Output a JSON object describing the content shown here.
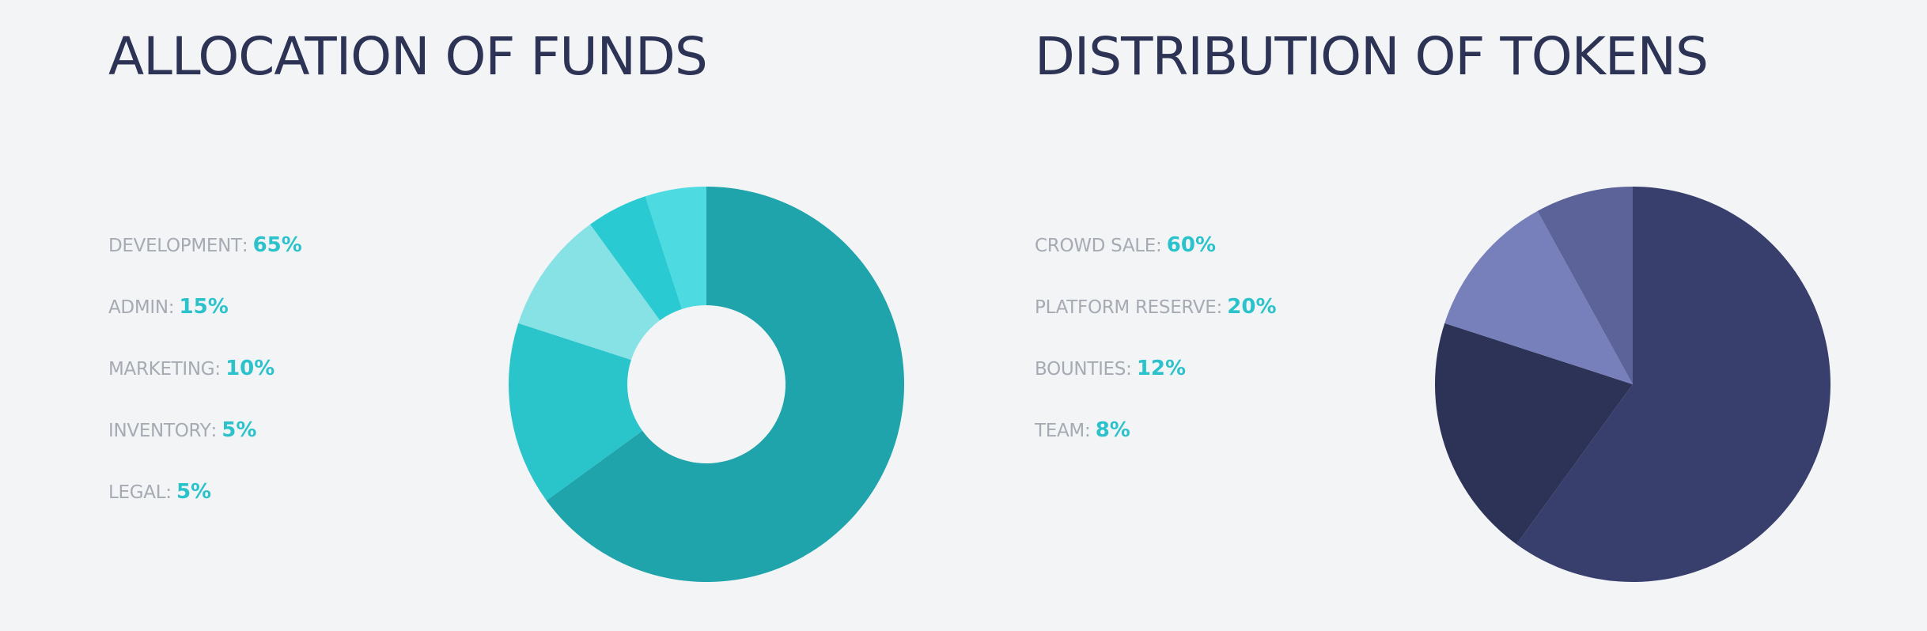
{
  "chart_data": [
    {
      "type": "pie",
      "variant": "donut",
      "title": "ALLOCATION OF FUNDS",
      "categories": [
        "DEVELOPMENT",
        "ADMIN",
        "MARKETING",
        "INVENTORY",
        "LEGAL"
      ],
      "values": [
        65,
        15,
        10,
        5,
        5
      ],
      "value_labels": [
        "65%",
        "15%",
        "10%",
        "5%",
        "5%"
      ],
      "colors": [
        "#1fa4ab",
        "#2ac4cb",
        "#87e2e6",
        "#2acad2",
        "#4ddae1"
      ],
      "legend_placement": "left"
    },
    {
      "type": "pie",
      "title": "DISTRIBUTION OF TOKENS",
      "categories": [
        "CROWD SALE",
        "PLATFORM RESERVE",
        "BOUNTIES",
        "TEAM"
      ],
      "values": [
        60,
        20,
        12,
        8
      ],
      "value_labels": [
        "60%",
        "20%",
        "12%",
        "8%"
      ],
      "colors": [
        "#393f6d",
        "#2d3357",
        "#7780bb",
        "#5b6399"
      ],
      "legend_placement": "left"
    }
  ]
}
